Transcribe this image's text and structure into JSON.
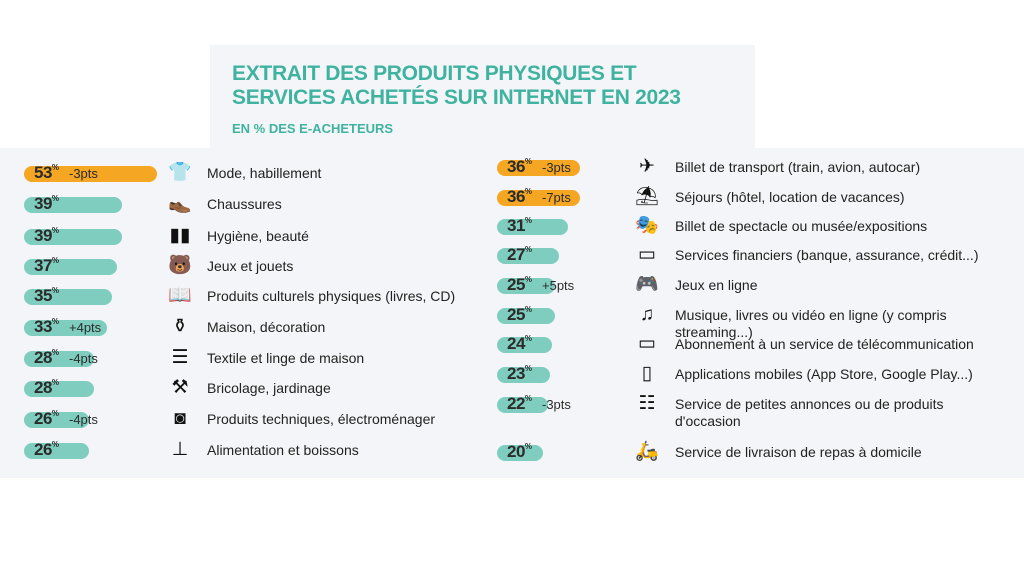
{
  "chart_data": {
    "type": "bar",
    "title": "EXTRAIT DES PRODUITS PHYSIQUES ET SERVICES ACHETÉS SUR INTERNET EN 2023",
    "subtitle": "EN % DES E-ACHETEURS",
    "unit": "%",
    "colors": {
      "highlight": "#f5a623",
      "default": "#7fcdbf",
      "title": "#3fb3a0"
    },
    "columns": [
      [
        {
          "value": 53,
          "change": "-3pts",
          "label": "Mode, habillement",
          "icon": "tshirt-icon",
          "highlight": true
        },
        {
          "value": 39,
          "change": "",
          "label": "Chaussures",
          "icon": "shoe-icon"
        },
        {
          "value": 39,
          "change": "",
          "label": "Hygiène, beauté",
          "icon": "cosmetics-icon"
        },
        {
          "value": 37,
          "change": "",
          "label": "Jeux et jouets",
          "icon": "teddy-bear-icon"
        },
        {
          "value": 35,
          "change": "",
          "label": "Produits culturels physiques (livres, CD)",
          "icon": "book-icon"
        },
        {
          "value": 33,
          "change": "+4pts",
          "label": "Maison, décoration",
          "icon": "vase-icon"
        },
        {
          "value": 28,
          "change": "-4pts",
          "label": "Textile et linge de maison",
          "icon": "linen-icon"
        },
        {
          "value": 28,
          "change": "",
          "label": "Bricolage, jardinage",
          "icon": "tools-icon"
        },
        {
          "value": 26,
          "change": "-4pts",
          "label": "Produits techniques, électroménager",
          "icon": "washing-machine-icon"
        },
        {
          "value": 26,
          "change": "",
          "label": "Alimentation et boissons",
          "icon": "food-icon"
        }
      ],
      [
        {
          "value": 36,
          "change": "-3pts",
          "label": "Billet de transport (train, avion, autocar)",
          "icon": "ticket-icon",
          "highlight": true
        },
        {
          "value": 36,
          "change": "-7pts",
          "label": "Séjours (hôtel, location de vacances)",
          "icon": "beach-umbrella-icon",
          "highlight": true
        },
        {
          "value": 31,
          "change": "",
          "label": "Billet de spectacle ou musée/expositions",
          "icon": "theater-masks-icon"
        },
        {
          "value": 27,
          "change": "",
          "label": "Services financiers (banque, assurance, crédit...)",
          "icon": "credit-card-icon"
        },
        {
          "value": 25,
          "change": "+5pts",
          "label": "Jeux en ligne",
          "icon": "gamepad-icon"
        },
        {
          "value": 25,
          "change": "",
          "label": "Musique, livres ou vidéo en ligne (y compris streaming...)",
          "icon": "music-note-icon"
        },
        {
          "value": 24,
          "change": "",
          "label": "Abonnement à un service de télécommunication",
          "icon": "monitor-icon"
        },
        {
          "value": 23,
          "change": "",
          "label": "Applications mobiles (App Store, Google Play...)",
          "icon": "smartphone-icon"
        },
        {
          "value": 22,
          "change": "-3pts",
          "label": "Service de petites annonces ou de produits d'occasion",
          "icon": "classified-ads-icon"
        },
        {
          "value": 20,
          "change": "",
          "label": "Service de livraison de repas à domicile",
          "icon": "delivery-scooter-icon"
        }
      ]
    ]
  }
}
